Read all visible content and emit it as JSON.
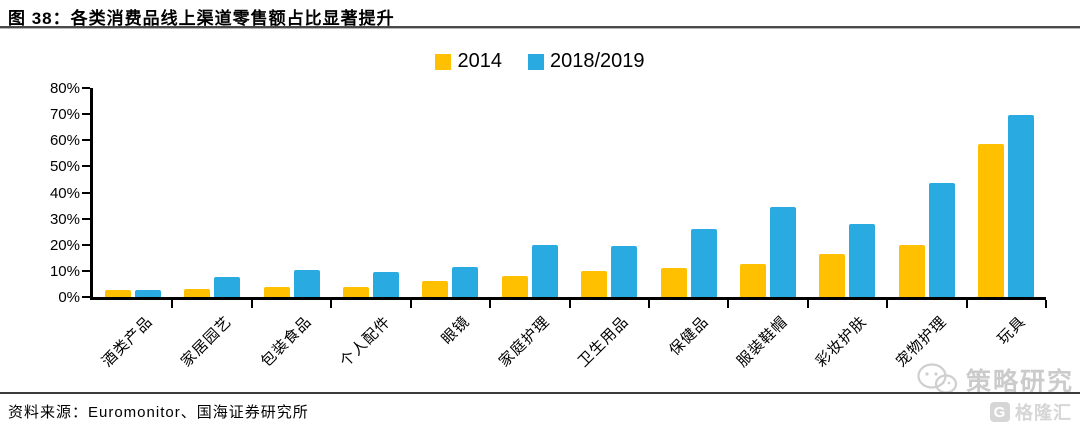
{
  "header": {
    "title": "图 38：各类消费品线上渠道零售额占比显著提升"
  },
  "footer": {
    "source": "资料来源：Euromonitor、国海证券研究所"
  },
  "watermarks": {
    "strategy_label": "策略研究",
    "gelonghui_label": "格隆汇",
    "gelonghui_badge": "G"
  },
  "chart_data": {
    "type": "bar",
    "title": "",
    "xlabel": "",
    "ylabel": "",
    "categories": [
      "酒类产品",
      "家居园艺",
      "包装食品",
      "个人配件",
      "眼镜",
      "家庭护理",
      "卫生用品",
      "保健品",
      "服装鞋帽",
      "彩妆护肤",
      "宠物护理",
      "玩具"
    ],
    "series": [
      {
        "name": "2014",
        "color": "#FFC000",
        "values": [
          2.8,
          3.2,
          4,
          4,
          6,
          8,
          10,
          11,
          12.5,
          16.5,
          20,
          58.5
        ]
      },
      {
        "name": "2018/2019",
        "color": "#29ABE2",
        "values": [
          2.8,
          7.5,
          10.5,
          9.5,
          11.5,
          20,
          19.5,
          26,
          34.5,
          28,
          43.5,
          69.5
        ]
      }
    ],
    "ylim": [
      0,
      80
    ],
    "ytick_step": 10,
    "ytick_suffix": "%",
    "grid": "off",
    "legend_position": "top-center",
    "axis_color": "#000000"
  }
}
